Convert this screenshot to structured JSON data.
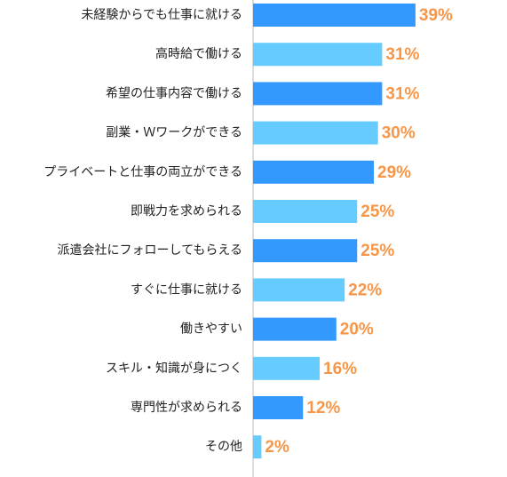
{
  "chart_data": {
    "type": "bar",
    "orientation": "horizontal",
    "categories": [
      "未経験からでも仕事に就ける",
      "高時給で働ける",
      "希望の仕事内容で働ける",
      "副業・Ｗワークができる",
      "プライベートと仕事の両立ができる",
      "即戦力を求められる",
      "派遣会社にフォローしてもらえる",
      "すぐに仕事に就ける",
      "働きやすい",
      "スキル・知識が身につく",
      "専門性が求められる",
      "その他"
    ],
    "values": [
      39,
      31,
      31,
      30,
      29,
      25,
      25,
      22,
      20,
      16,
      12,
      2
    ],
    "value_labels": [
      "39%",
      "31%",
      "31%",
      "30%",
      "29%",
      "25%",
      "25%",
      "22%",
      "20%",
      "16%",
      "12%",
      "2%"
    ],
    "colors": [
      "#3399ff",
      "#66ccff",
      "#3399ff",
      "#66ccff",
      "#3399ff",
      "#66ccff",
      "#3399ff",
      "#66ccff",
      "#3399ff",
      "#66ccff",
      "#3399ff",
      "#66ccff"
    ],
    "label_color": "#f79646"
  }
}
